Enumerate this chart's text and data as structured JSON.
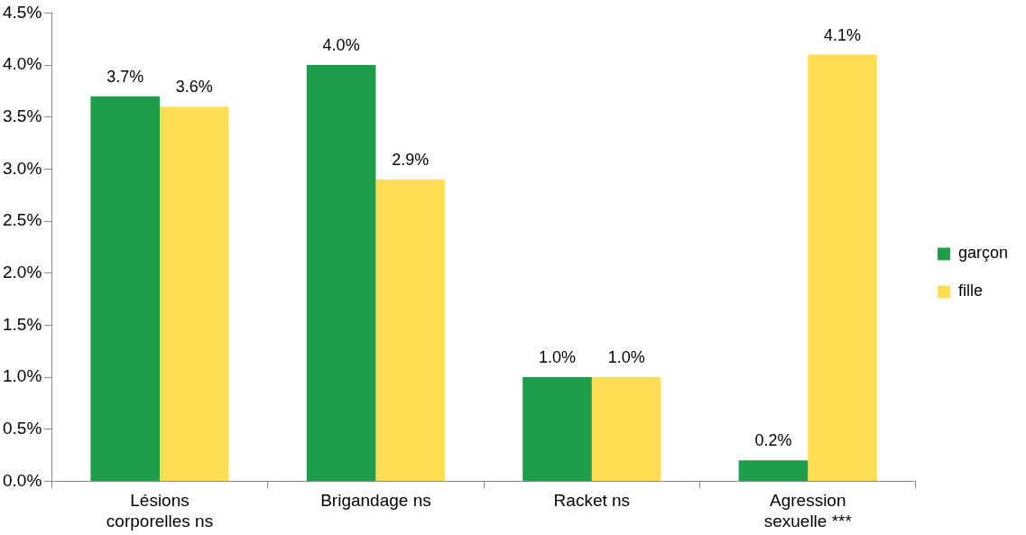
{
  "chart_data": {
    "type": "bar",
    "categories": [
      "Lésions corporelles ns",
      "Brigandage ns",
      "Racket ns",
      "Agression sexuelle ***"
    ],
    "series": [
      {
        "name": "garçon",
        "color": "#1e9e4a",
        "values": [
          3.7,
          4.0,
          1.0,
          0.2
        ],
        "value_labels": [
          "3.7%",
          "4.0%",
          "1.0%",
          "0.2%"
        ]
      },
      {
        "name": "fille",
        "color": "#ffdd55",
        "values": [
          3.6,
          2.9,
          1.0,
          4.1
        ],
        "value_labels": [
          "3.6%",
          "2.9%",
          "1.0%",
          "4.1%"
        ]
      }
    ],
    "ylim": [
      0,
      4.5
    ],
    "yticks": [
      {
        "value": 0,
        "label": "0.0%"
      },
      {
        "value": 0.5,
        "label": "0.5%"
      },
      {
        "value": 1,
        "label": "1.0%"
      },
      {
        "value": 1.5,
        "label": "1.5%"
      },
      {
        "value": 2,
        "label": "2.0%"
      },
      {
        "value": 2.5,
        "label": "2.5%"
      },
      {
        "value": 3,
        "label": "3.0%"
      },
      {
        "value": 3.5,
        "label": "3.5%"
      },
      {
        "value": 4,
        "label": "4.0%"
      },
      {
        "value": 4.5,
        "label": "4.5%"
      }
    ],
    "grid": false,
    "legend": "right"
  }
}
